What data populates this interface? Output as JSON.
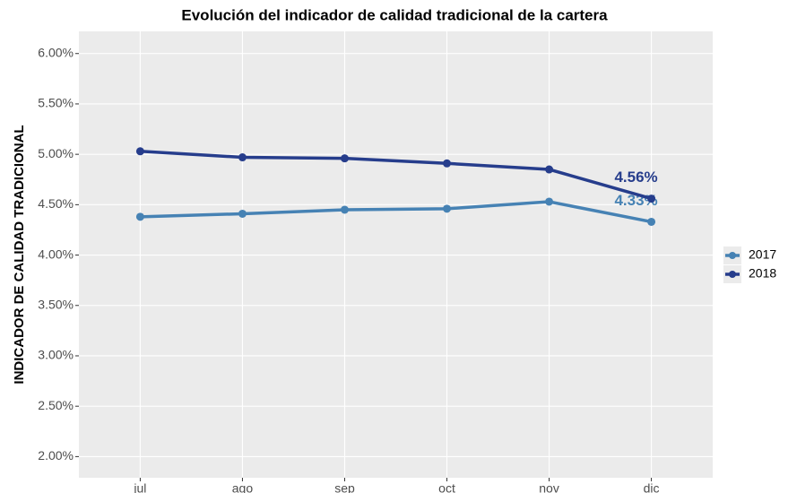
{
  "chart_data": {
    "type": "line",
    "title": "Evolución del indicador de calidad tradicional de la cartera",
    "y_label": "INDICADOR DE CALIDAD TRADICIONAL",
    "categories": [
      "jul",
      "ago",
      "sep",
      "oct",
      "nov",
      "dic"
    ],
    "series": [
      {
        "name": "2017",
        "color": "#4682b4",
        "values": [
          4.38,
          4.41,
          4.45,
          4.46,
          4.53,
          4.33
        ],
        "value_labels": [
          null,
          null,
          null,
          null,
          null,
          "4.33%"
        ]
      },
      {
        "name": "2018",
        "color": "#263d8c",
        "values": [
          5.03,
          4.97,
          4.96,
          4.91,
          4.85,
          4.56
        ],
        "value_labels": [
          null,
          null,
          null,
          null,
          null,
          "4.56%"
        ]
      }
    ],
    "ylim": [
      1.79,
      6.22
    ],
    "yticks": [
      {
        "value": 2.0,
        "label": "2.00%"
      },
      {
        "value": 2.5,
        "label": "2.50%"
      },
      {
        "value": 3.0,
        "label": "3.00%"
      },
      {
        "value": 3.5,
        "label": "3.50%"
      },
      {
        "value": 4.0,
        "label": "4.00%"
      },
      {
        "value": 4.5,
        "label": "4.50%"
      },
      {
        "value": 5.0,
        "label": "5.00%"
      },
      {
        "value": 5.5,
        "label": "5.50%"
      },
      {
        "value": 6.0,
        "label": "6.00%"
      }
    ],
    "grid": true,
    "legend": "right"
  }
}
